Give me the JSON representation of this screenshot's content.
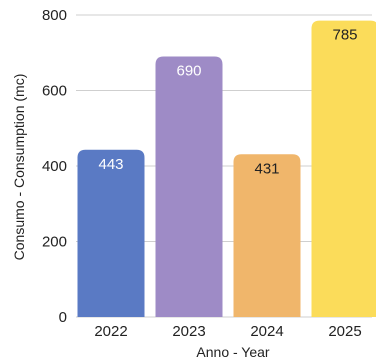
{
  "chart_data": {
    "type": "bar",
    "categories": [
      "2022",
      "2023",
      "2024",
      "2025"
    ],
    "values": [
      443,
      690,
      431,
      785
    ],
    "data_labels": [
      "443",
      "690",
      "431",
      "785"
    ],
    "colors": [
      "#5a7ac4",
      "#9e8bc6",
      "#f0b66b",
      "#fbdc5a"
    ],
    "label_colors": [
      "#ffffff",
      "#ffffff",
      "#222222",
      "#222222"
    ],
    "title": "",
    "xlabel": "Anno - Year",
    "ylabel": "Consumo - Consumption (mc)",
    "ylim": [
      0,
      800
    ],
    "yticks": [
      0,
      200,
      400,
      600,
      800
    ],
    "ytick_labels": [
      "0",
      "200",
      "400",
      "600",
      "800"
    ],
    "grid": true,
    "legend": "none"
  }
}
